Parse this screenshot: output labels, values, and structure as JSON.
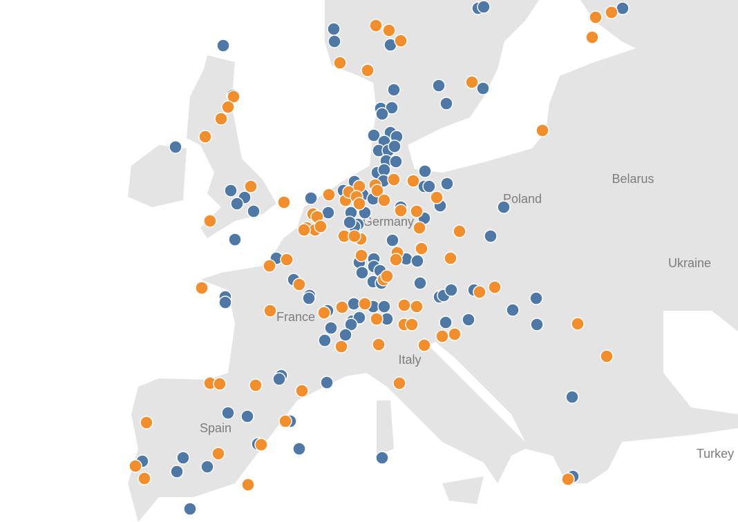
{
  "labels": [
    "Poland",
    "Belarus",
    "Ukraine",
    "Germany",
    "France",
    "Italy",
    "Spain",
    "Turkey"
  ]
}
